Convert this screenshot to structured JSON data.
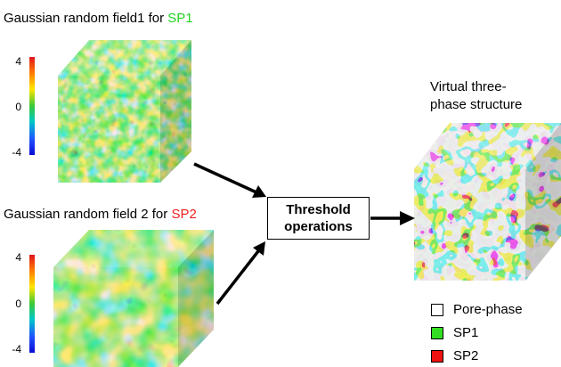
{
  "field1": {
    "title_prefix": "Gaussian random field1 for ",
    "title_phase": "SP1",
    "colorbar": {
      "max": "4",
      "mid": "0",
      "min": "-4"
    }
  },
  "field2": {
    "title_prefix": "Gaussian random field 2 for ",
    "title_phase": "SP2",
    "colorbar": {
      "max": "4",
      "mid": "0",
      "min": "-4"
    }
  },
  "process_box": {
    "line1": "Threshold",
    "line2": "operations"
  },
  "output": {
    "title_line1": "Virtual three-",
    "title_line2": "phase structure"
  },
  "legend": [
    {
      "label": "Pore-phase",
      "color": "#ffffff"
    },
    {
      "label": "SP1",
      "color": "#33dd22"
    },
    {
      "label": "SP2",
      "color": "#ee1111"
    }
  ],
  "colors": {
    "sp1_accent": "#1fd41f",
    "sp2_accent": "#ee1c1c",
    "arrow": "#000000",
    "phase_cube_bg": "#c8c8c8"
  }
}
